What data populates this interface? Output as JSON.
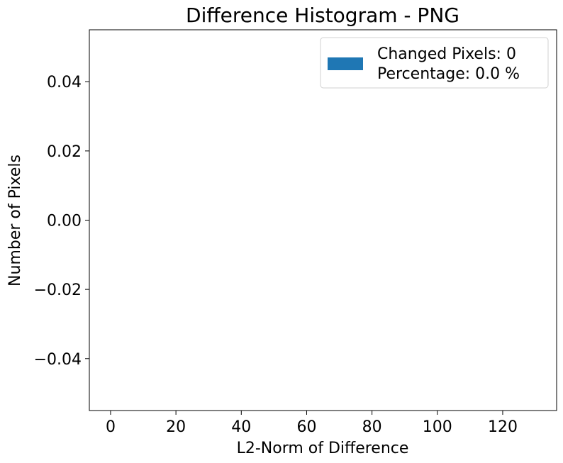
{
  "chart_data": {
    "type": "bar",
    "title": "Difference Histogram - PNG",
    "xlabel": "L2-Norm of Difference",
    "ylabel": "Number of Pixels",
    "xlim": [
      -6.5,
      136.5
    ],
    "ylim": [
      -0.055,
      0.055
    ],
    "x_ticks": [
      0,
      20,
      40,
      60,
      80,
      100,
      120
    ],
    "x_tick_labels": [
      "0",
      "20",
      "40",
      "60",
      "80",
      "100",
      "120"
    ],
    "y_ticks": [
      0.04,
      0.02,
      0.0,
      -0.02,
      -0.04
    ],
    "y_tick_labels": [
      "0.04",
      "0.02",
      "0.00",
      "−0.02",
      "−0.04"
    ],
    "series": [
      {
        "name": "Changed Pixels: 0\nPercentage: 0.0 %",
        "values": []
      }
    ],
    "grid": false,
    "legend": {
      "placement": "top-right",
      "line1": "Changed Pixels: 0",
      "line2": "Percentage: 0.0 %",
      "color": "#1f77b4"
    }
  }
}
